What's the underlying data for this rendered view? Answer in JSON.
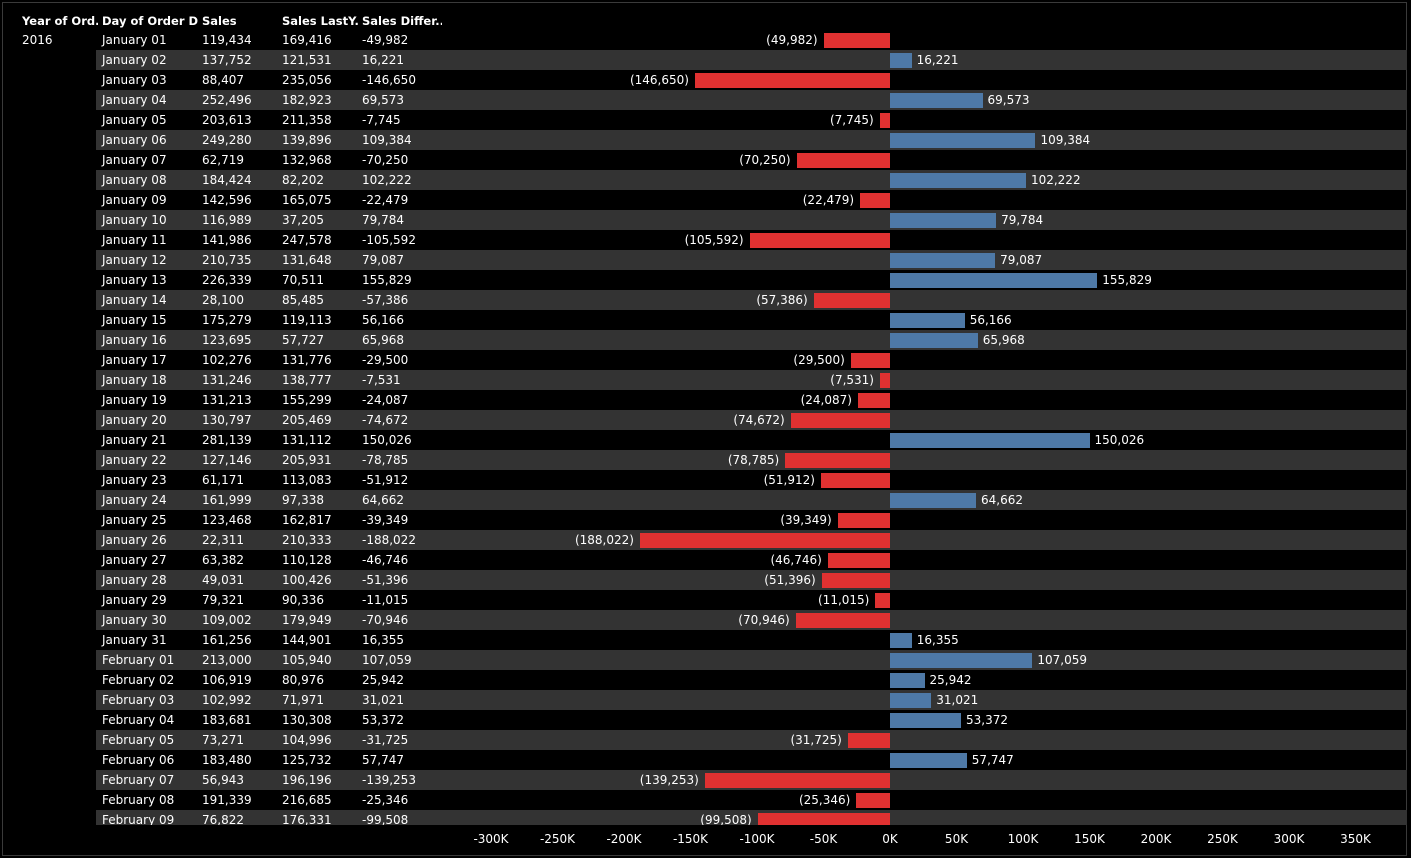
{
  "headers": {
    "year": "Year of Ord..",
    "day": "Day of Order D..",
    "sales": "Sales",
    "sales_last_year": "Sales LastY..",
    "sales_difference": "Sales Differ.."
  },
  "year_value": "2016",
  "colors": {
    "negative": "#e03131",
    "positive": "#4e79a7",
    "background": "#000000",
    "band": "#333333"
  },
  "chart_data": {
    "type": "bar",
    "orientation": "horizontal",
    "categories": [
      "January 01",
      "January 02",
      "January 03",
      "January 04",
      "January 05",
      "January 06",
      "January 07",
      "January 08",
      "January 09",
      "January 10",
      "January 11",
      "January 12",
      "January 13",
      "January 14",
      "January 15",
      "January 16",
      "January 17",
      "January 18",
      "January 19",
      "January 20",
      "January 21",
      "January 22",
      "January 23",
      "January 24",
      "January 25",
      "January 26",
      "January 27",
      "January 28",
      "January 29",
      "January 30",
      "January 31",
      "February 01",
      "February 02",
      "February 03",
      "February 04",
      "February 05",
      "February 06",
      "February 07",
      "February 08",
      "February 09"
    ],
    "sales_text": [
      "119,434",
      "137,752",
      "88,407",
      "252,496",
      "203,613",
      "249,280",
      "62,719",
      "184,424",
      "142,596",
      "116,989",
      "141,986",
      "210,735",
      "226,339",
      "28,100",
      "175,279",
      "123,695",
      "102,276",
      "131,246",
      "131,213",
      "130,797",
      "281,139",
      "127,146",
      "61,171",
      "161,999",
      "123,468",
      "22,311",
      "63,382",
      "49,031",
      "79,321",
      "109,002",
      "161,256",
      "213,000",
      "106,919",
      "102,992",
      "183,681",
      "73,271",
      "183,480",
      "56,943",
      "191,339",
      "76,822"
    ],
    "sales_last_year_text": [
      "169,416",
      "121,531",
      "235,056",
      "182,923",
      "211,358",
      "139,896",
      "132,968",
      "82,202",
      "165,075",
      "37,205",
      "247,578",
      "131,648",
      "70,511",
      "85,485",
      "119,113",
      "57,727",
      "131,776",
      "138,777",
      "155,299",
      "205,469",
      "131,112",
      "205,931",
      "113,083",
      "97,338",
      "162,817",
      "210,333",
      "110,128",
      "100,426",
      "90,336",
      "179,949",
      "144,901",
      "105,940",
      "80,976",
      "71,971",
      "130,308",
      "104,996",
      "125,732",
      "196,196",
      "216,685",
      "176,331"
    ],
    "difference_text": [
      "-49,982",
      "16,221",
      "-146,650",
      "69,573",
      "-7,745",
      "109,384",
      "-70,250",
      "102,222",
      "-22,479",
      "79,784",
      "-105,592",
      "79,087",
      "155,829",
      "-57,386",
      "56,166",
      "65,968",
      "-29,500",
      "-7,531",
      "-24,087",
      "-74,672",
      "150,026",
      "-78,785",
      "-51,912",
      "64,662",
      "-39,349",
      "-188,022",
      "-46,746",
      "-51,396",
      "-11,015",
      "-70,946",
      "16,355",
      "107,059",
      "25,942",
      "31,021",
      "53,372",
      "-31,725",
      "57,747",
      "-139,253",
      "-25,346",
      "-99,508"
    ],
    "values": [
      -49982,
      16221,
      -146650,
      69573,
      -7745,
      109384,
      -70250,
      102222,
      -22479,
      79784,
      -105592,
      79087,
      155829,
      -57386,
      56166,
      65968,
      -29500,
      -7531,
      -24087,
      -74672,
      150026,
      -78785,
      -51912,
      64662,
      -39349,
      -188022,
      -46746,
      -51396,
      -11015,
      -70946,
      16355,
      107059,
      25942,
      31021,
      53372,
      -31725,
      57747,
      -139253,
      -25346,
      -99508
    ],
    "bar_labels": [
      "(49,982)",
      "16,221",
      "(146,650)",
      "69,573",
      "(7,745)",
      "109,384",
      "(70,250)",
      "102,222",
      "(22,479)",
      "79,784",
      "(105,592)",
      "79,087",
      "155,829",
      "(57,386)",
      "56,166",
      "65,968",
      "(29,500)",
      "(7,531)",
      "(24,087)",
      "(74,672)",
      "150,026",
      "(78,785)",
      "(51,912)",
      "64,662",
      "(39,349)",
      "(188,022)",
      "(46,746)",
      "(51,396)",
      "(11,015)",
      "(70,946)",
      "16,355",
      "107,059",
      "25,942",
      "31,021",
      "53,372",
      "(31,725)",
      "57,747",
      "(139,253)",
      "(25,346)",
      "(99,508)"
    ],
    "xlim": [
      -300000,
      350000
    ],
    "x_ticks": [
      -300000,
      -250000,
      -200000,
      -150000,
      -100000,
      -50000,
      0,
      50000,
      100000,
      150000,
      200000,
      250000,
      300000,
      350000
    ],
    "x_tick_labels": [
      "-300K",
      "-250K",
      "-200K",
      "-150K",
      "-100K",
      "-50K",
      "0K",
      "50K",
      "100K",
      "150K",
      "200K",
      "250K",
      "300K",
      "350K"
    ],
    "grid": false
  }
}
